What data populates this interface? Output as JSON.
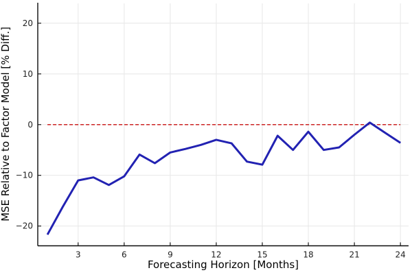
{
  "figure": {
    "background": "#ffffff"
  },
  "chart_data": {
    "type": "line",
    "title": "",
    "xlabel": "Forecasting Horizon [Months]",
    "ylabel": "MSE Relative to Factor Model [% Diff.]",
    "x": [
      1,
      2,
      3,
      4,
      5,
      6,
      7,
      8,
      9,
      10,
      11,
      12,
      13,
      14,
      15,
      16,
      17,
      18,
      19,
      20,
      21,
      22,
      23,
      24
    ],
    "series": [
      {
        "name": "MSE relative to factor model",
        "color": "#2222b2",
        "style": "solid",
        "width": 3,
        "values": [
          -21.7,
          -16.2,
          -11.0,
          -10.4,
          -11.9,
          -10.2,
          -5.9,
          -7.6,
          -5.5,
          -4.8,
          -4.0,
          -3.0,
          -3.7,
          -7.3,
          -7.9,
          -2.2,
          -5.0,
          -1.4,
          -5.0,
          -4.5,
          -2.0,
          0.4,
          -1.6,
          -3.6
        ]
      }
    ],
    "reference_line": {
      "y": 0,
      "color": "#cc2222",
      "style": "dashed",
      "width": 1.5
    },
    "xticks": [
      3,
      6,
      9,
      12,
      15,
      18,
      21,
      24
    ],
    "yticks": [
      -20,
      -10,
      0,
      10,
      20
    ],
    "xlim": [
      0.37,
      24.53
    ],
    "ylim": [
      -23.9,
      23.9
    ],
    "grid": true,
    "legend": "none",
    "colors": {
      "grid": "#e9e9e9",
      "spine": "#0a0a0a",
      "tick": "#1a1a1a",
      "tick_label": "#1f1f1f",
      "axis_label": "#000000"
    }
  }
}
